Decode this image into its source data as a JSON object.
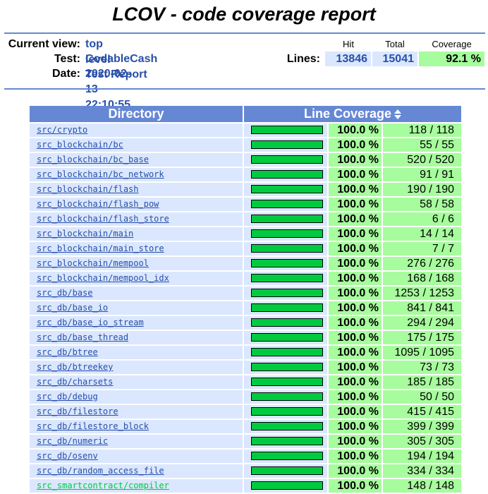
{
  "page_title": "LCOV - code coverage report",
  "info": {
    "current_view_label": "Current view:",
    "current_view_value": "top level",
    "test_label": "Test:",
    "test_value": "CodableCash Test Report",
    "date_label": "Date:",
    "date_value": "2020-02-13 22:10:55"
  },
  "summary": {
    "hit_header": "Hit",
    "total_header": "Total",
    "coverage_header": "Coverage",
    "lines_label": "Lines:",
    "hit": "13846",
    "total": "15041",
    "coverage": "92.1 %"
  },
  "table": {
    "directory_header": "Directory",
    "line_coverage_header": "Line Coverage",
    "sort_icon": "sort-updown-icon",
    "rows": [
      {
        "dir": "src/crypto",
        "pct": "100.0 %",
        "count": "118 / 118",
        "fill": 1.0
      },
      {
        "dir": "src_blockchain/bc",
        "pct": "100.0 %",
        "count": "55 / 55",
        "fill": 1.0
      },
      {
        "dir": "src_blockchain/bc_base",
        "pct": "100.0 %",
        "count": "520 / 520",
        "fill": 1.0
      },
      {
        "dir": "src_blockchain/bc_network",
        "pct": "100.0 %",
        "count": "91 / 91",
        "fill": 1.0
      },
      {
        "dir": "src_blockchain/flash",
        "pct": "100.0 %",
        "count": "190 / 190",
        "fill": 1.0
      },
      {
        "dir": "src_blockchain/flash_pow",
        "pct": "100.0 %",
        "count": "58 / 58",
        "fill": 1.0
      },
      {
        "dir": "src_blockchain/flash_store",
        "pct": "100.0 %",
        "count": "6 / 6",
        "fill": 1.0
      },
      {
        "dir": "src_blockchain/main",
        "pct": "100.0 %",
        "count": "14 / 14",
        "fill": 1.0
      },
      {
        "dir": "src_blockchain/main_store",
        "pct": "100.0 %",
        "count": "7 / 7",
        "fill": 1.0
      },
      {
        "dir": "src_blockchain/mempool",
        "pct": "100.0 %",
        "count": "276 / 276",
        "fill": 1.0
      },
      {
        "dir": "src_blockchain/mempool_idx",
        "pct": "100.0 %",
        "count": "168 / 168",
        "fill": 1.0
      },
      {
        "dir": "src_db/base",
        "pct": "100.0 %",
        "count": "1253 / 1253",
        "fill": 1.0
      },
      {
        "dir": "src_db/base_io",
        "pct": "100.0 %",
        "count": "841 / 841",
        "fill": 1.0
      },
      {
        "dir": "src_db/base_io_stream",
        "pct": "100.0 %",
        "count": "294 / 294",
        "fill": 1.0
      },
      {
        "dir": "src_db/base_thread",
        "pct": "100.0 %",
        "count": "175 / 175",
        "fill": 1.0
      },
      {
        "dir": "src_db/btree",
        "pct": "100.0 %",
        "count": "1095 / 1095",
        "fill": 1.0
      },
      {
        "dir": "src_db/btreekey",
        "pct": "100.0 %",
        "count": "73 / 73",
        "fill": 1.0
      },
      {
        "dir": "src_db/charsets",
        "pct": "100.0 %",
        "count": "185 / 185",
        "fill": 1.0
      },
      {
        "dir": "src_db/debug",
        "pct": "100.0 %",
        "count": "50 / 50",
        "fill": 1.0
      },
      {
        "dir": "src_db/filestore",
        "pct": "100.0 %",
        "count": "415 / 415",
        "fill": 1.0
      },
      {
        "dir": "src_db/filestore_block",
        "pct": "100.0 %",
        "count": "399 / 399",
        "fill": 1.0
      },
      {
        "dir": "src_db/numeric",
        "pct": "100.0 %",
        "count": "305 / 305",
        "fill": 1.0
      },
      {
        "dir": "src_db/osenv",
        "pct": "100.0 %",
        "count": "194 / 194",
        "fill": 1.0
      },
      {
        "dir": "src_db/random_access_file",
        "pct": "100.0 %",
        "count": "334 / 334",
        "fill": 1.0
      },
      {
        "dir": "src_smartcontract/compiler",
        "pct": "100.0 %",
        "count": "148 / 148",
        "fill": 1.0,
        "visited": true
      }
    ]
  },
  "colors": {
    "header_bg": "#6688d4",
    "link": "#284fa8",
    "visited_link": "#00cb40",
    "cell_bg": "#dae7fe",
    "high_cov_bg": "#a7fc9d",
    "bar_fill": "#00cb40"
  }
}
